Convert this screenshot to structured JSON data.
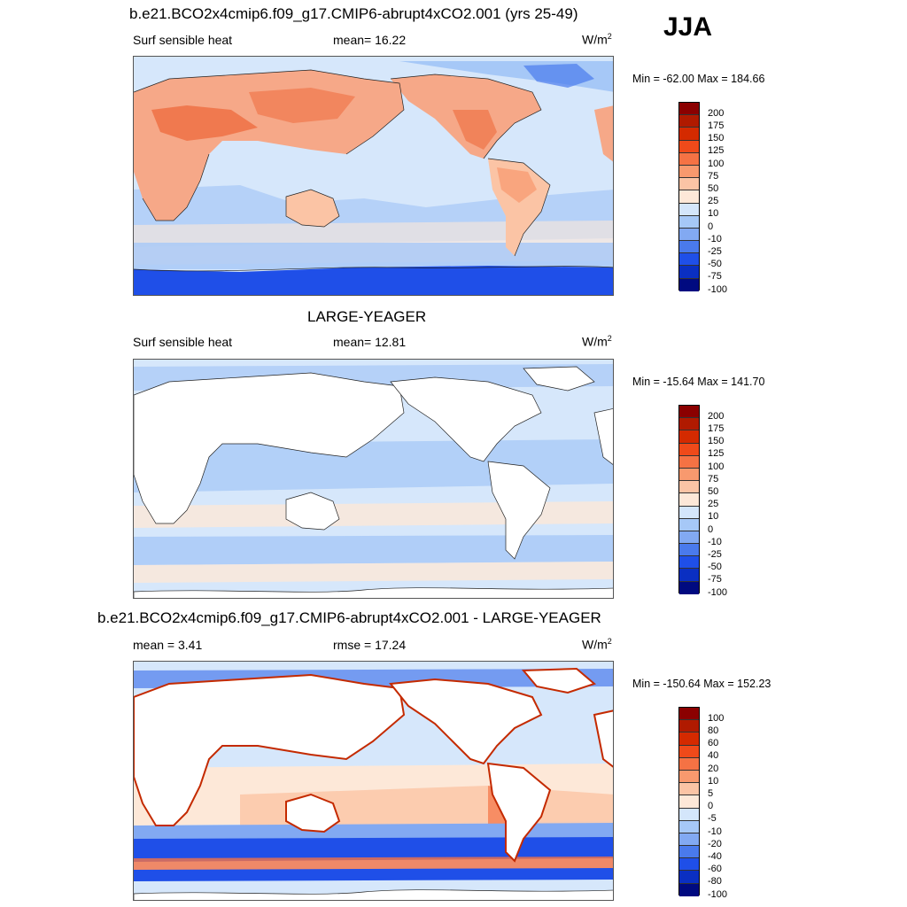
{
  "season": "JJA",
  "panels": [
    {
      "title": "b.e21.BCO2x4cmip6.f09_g17.CMIP6-abrupt4xCO2.001 (yrs 25-49)",
      "left_label": "Surf sensible heat",
      "stat1": "mean=  16.22",
      "stat2": "",
      "units": "W/m",
      "units_sup": "2",
      "minmax": "Min = -62.00 Max = 184.66",
      "colorbar": [
        "200",
        "175",
        "150",
        "125",
        "100",
        "75",
        "50",
        "25",
        "10",
        "0",
        "-10",
        "-25",
        "-50",
        "-75",
        "-100"
      ]
    },
    {
      "title": "LARGE-YEAGER",
      "left_label": "Surf sensible heat",
      "stat1": "mean=  12.81",
      "stat2": "",
      "units": "W/m",
      "units_sup": "2",
      "minmax": "Min = -15.64 Max = 141.70",
      "colorbar": [
        "200",
        "175",
        "150",
        "125",
        "100",
        "75",
        "50",
        "25",
        "10",
        "0",
        "-10",
        "-25",
        "-50",
        "-75",
        "-100"
      ]
    },
    {
      "title": "b.e21.BCO2x4cmip6.f09_g17.CMIP6-abrupt4xCO2.001 - LARGE-YEAGER",
      "left_label": "mean =   3.41",
      "stat1": "rmse =  17.24",
      "stat2": "",
      "units": "W/m",
      "units_sup": "2",
      "minmax": "Min = -150.64 Max = 152.23",
      "colorbar": [
        "100",
        "80",
        "60",
        "40",
        "20",
        "10",
        "5",
        "0",
        "-5",
        "-10",
        "-20",
        "-40",
        "-60",
        "-80",
        "-100"
      ]
    }
  ],
  "colors": {
    "scale": [
      "#8b0000",
      "#b01a00",
      "#d42a00",
      "#ef4a1a",
      "#f57244",
      "#f8996e",
      "#fbc4a5",
      "#fde8d8",
      "#d4e6fb",
      "#a6c8f7",
      "#82a9f2",
      "#4a7aec",
      "#1f4fe8",
      "#0a2fc2",
      "#000a80"
    ],
    "ocean_light": "#d6e7fb",
    "ocean_mid": "#a6c8f7",
    "land_warm": "#f6a888",
    "land_hot": "#ee6a3c",
    "antarctic": "#1f4fe8",
    "land_white": "#ffffff",
    "warm_band": "#fbd2bb"
  }
}
